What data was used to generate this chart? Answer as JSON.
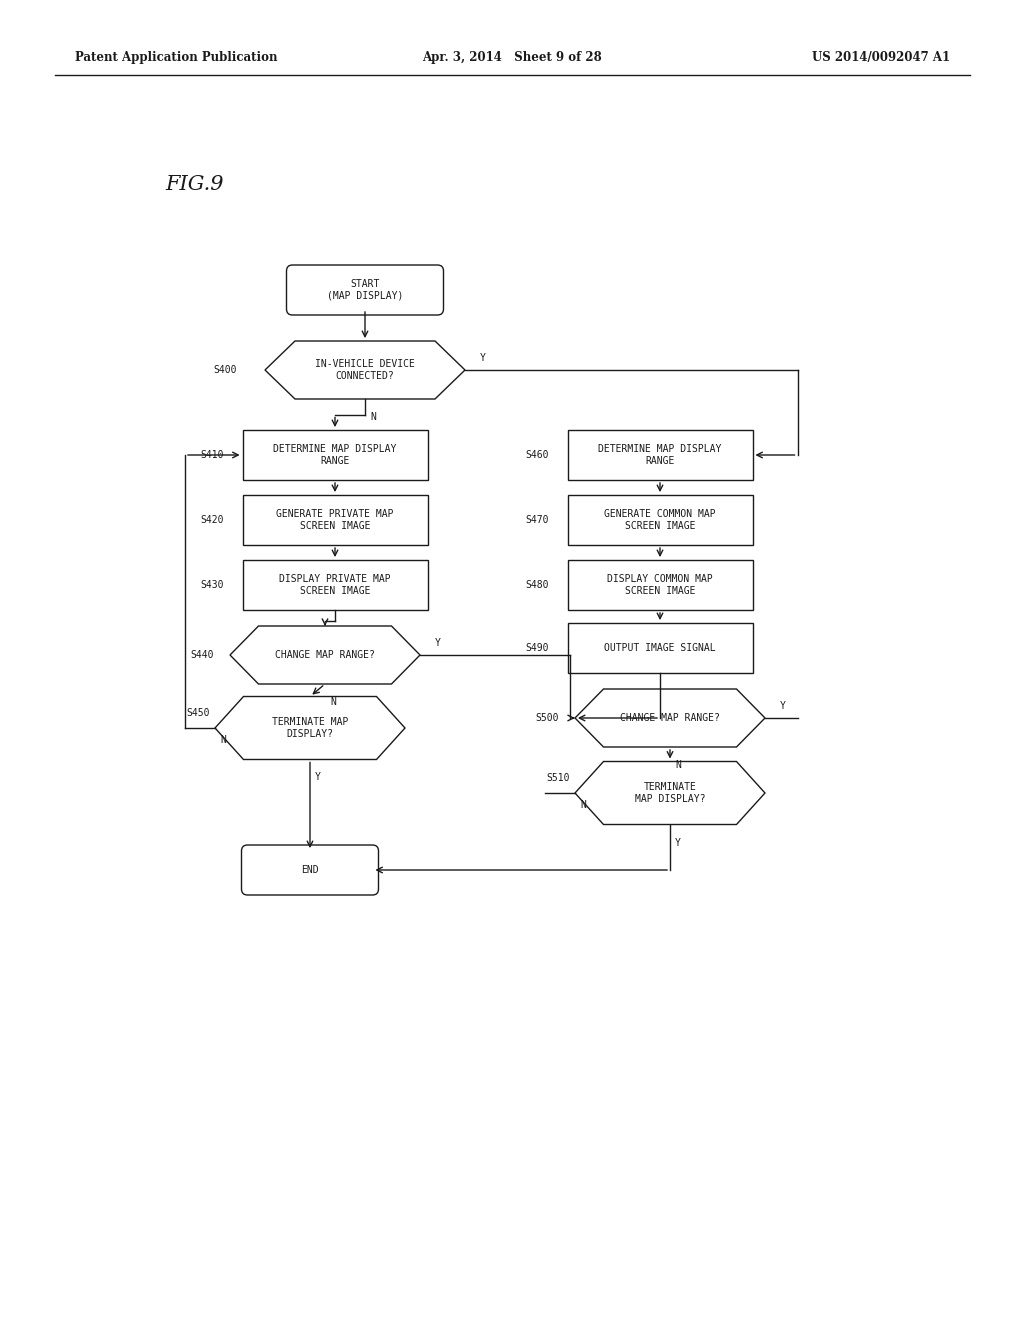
{
  "header_left": "Patent Application Publication",
  "header_center": "Apr. 3, 2014   Sheet 9 of 28",
  "header_right": "US 2014/0092047 A1",
  "fig_label": "FIG.9",
  "bg_color": "#ffffff",
  "line_color": "#1a1a1a",
  "text_color": "#1a1a1a",
  "font_size": 7.0,
  "lw": 1.0,
  "start_label": "START\n(MAP DISPLAY)",
  "end_label": "END",
  "s400_label": "IN-VEHICLE DEVICE\nCONNECTED?",
  "s410_label": "DETERMINE MAP DISPLAY\nRANGE",
  "s420_label": "GENERATE PRIVATE MAP\nSCREEN IMAGE",
  "s430_label": "DISPLAY PRIVATE MAP\nSCREEN IMAGE",
  "s440_label": "CHANGE MAP RANGE?",
  "s450_label": "TERMINATE MAP\nDISPLAY?",
  "s460_label": "DETERMINE MAP DISPLAY\nRANGE",
  "s470_label": "GENERATE COMMON MAP\nSCREEN IMAGE",
  "s480_label": "DISPLAY COMMON MAP\nSCREEN IMAGE",
  "s490_label": "OUTPUT IMAGE SIGNAL",
  "s500_label": "CHANGE MAP RANGE?",
  "s510_label": "TERMINATE\nMAP DISPLAY?"
}
